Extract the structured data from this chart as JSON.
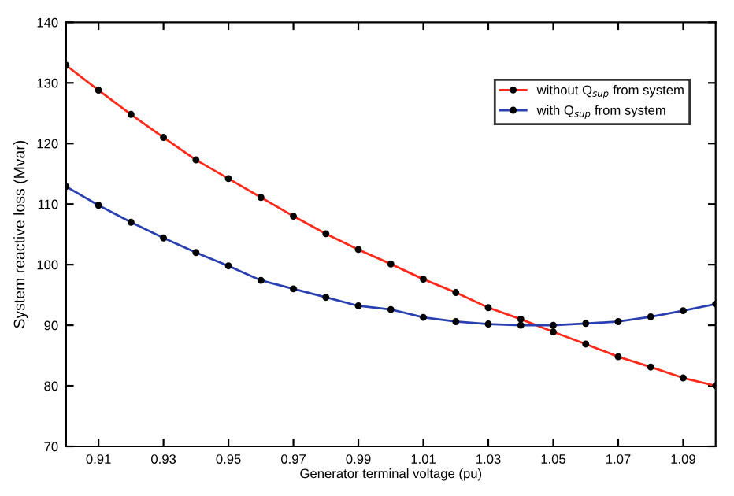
{
  "chart_data": {
    "type": "line",
    "xlabel": "Generator terminal voltage (pu)",
    "ylabel": "System reactive loss (Mvar)",
    "x": [
      0.9,
      0.91,
      0.92,
      0.93,
      0.94,
      0.95,
      0.96,
      0.97,
      0.98,
      0.99,
      1.0,
      1.01,
      1.02,
      1.03,
      1.04,
      1.05,
      1.06,
      1.07,
      1.08,
      1.09,
      1.1
    ],
    "series": [
      {
        "name": "without Q$_{sup}$ from system",
        "color": "#ff2a1a",
        "values": [
          132.9,
          128.8,
          124.8,
          121.0,
          117.3,
          114.2,
          111.1,
          108.0,
          105.1,
          102.5,
          100.1,
          97.6,
          95.4,
          92.9,
          91.0,
          88.9,
          86.9,
          84.8,
          83.1,
          81.3,
          80.0
        ]
      },
      {
        "name": "with Q$_{sup}$ from system",
        "color": "#2a3fb0",
        "values": [
          112.9,
          109.8,
          107.0,
          104.4,
          102.0,
          99.8,
          97.4,
          96.0,
          94.6,
          93.2,
          92.6,
          91.3,
          90.6,
          90.2,
          90.0,
          90.0,
          90.3,
          90.6,
          91.4,
          92.4,
          93.5
        ]
      }
    ],
    "xlim": [
      0.9,
      1.1
    ],
    "xticks": [
      0.91,
      0.93,
      0.95,
      0.97,
      0.99,
      1.01,
      1.03,
      1.05,
      1.07,
      1.09
    ],
    "ylim": [
      70,
      140
    ],
    "yticks": [
      70,
      80,
      90,
      100,
      110,
      120,
      130,
      140
    ],
    "grid": false,
    "legend": "top right",
    "marker": "circle",
    "line_style": "solid"
  }
}
